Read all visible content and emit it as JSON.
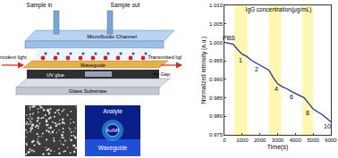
{
  "diagram": {
    "sample_in": "Sample in",
    "sample_out": "Sample out",
    "channel": "Microfluidic Channel",
    "incident": "Incident light",
    "transmitted": "Transmitted light",
    "waveguide": "Waveguide",
    "glue": "UV glue",
    "air_gap": "Air Gap",
    "substrate": "Glass Substrate",
    "simulation": {
      "analyte": "Analyte",
      "particle": "AuNP",
      "waveguide": "Waveguide"
    }
  },
  "chart_data": {
    "type": "line",
    "title": "IgG concentration(μg/mL)",
    "x_label": "Time(s)",
    "y_label": "Normalized intensity (a.u.)",
    "x": [
      0,
      250,
      500,
      750,
      1000,
      1250,
      1500,
      1750,
      2000,
      2250,
      2500,
      2750,
      3000,
      3250,
      3500,
      3750,
      4000,
      4250,
      4500,
      4750,
      5000,
      5250,
      5500,
      5750,
      6000
    ],
    "values": [
      1.0,
      0.9998,
      0.9995,
      0.998,
      0.9968,
      0.9962,
      0.9952,
      0.9945,
      0.9938,
      0.993,
      0.9925,
      0.9905,
      0.9888,
      0.988,
      0.9875,
      0.9868,
      0.9862,
      0.9858,
      0.985,
      0.9835,
      0.982,
      0.9812,
      0.9805,
      0.9795,
      0.9785
    ],
    "color": "#1f3a93",
    "xlim": [
      0,
      6000
    ],
    "xticks": [
      0,
      1000,
      2000,
      3000,
      4000,
      5000,
      6000
    ],
    "ylim": [
      0.975,
      1.01
    ],
    "yticks": [
      {
        "value": 0.975,
        "label": "0.975"
      },
      {
        "value": 0.98,
        "label": "0.980"
      },
      {
        "value": 0.985,
        "label": "0.985"
      },
      {
        "value": 0.99,
        "label": "0.990"
      },
      {
        "value": 0.995,
        "label": "0.995"
      },
      {
        "value": 1.0,
        "label": "1.000"
      },
      {
        "value": 1.005,
        "label": "1.005"
      },
      {
        "value": 1.01,
        "label": "1.010"
      }
    ],
    "grid": false,
    "bands": [
      [
        550,
        1300
      ],
      [
        2500,
        3200
      ],
      [
        4400,
        5000
      ]
    ],
    "band_color": "#fff59d",
    "annotations": [
      {
        "text": "PBS",
        "x": 250,
        "y": 1.0012
      },
      {
        "text": "1",
        "x": 900,
        "y": 0.9952
      },
      {
        "text": "2",
        "x": 1800,
        "y": 0.9928
      },
      {
        "text": "4",
        "x": 2900,
        "y": 0.9875
      },
      {
        "text": "6",
        "x": 3800,
        "y": 0.9852
      },
      {
        "text": "8",
        "x": 4700,
        "y": 0.9808
      },
      {
        "text": "10",
        "x": 5800,
        "y": 0.9772
      }
    ]
  }
}
